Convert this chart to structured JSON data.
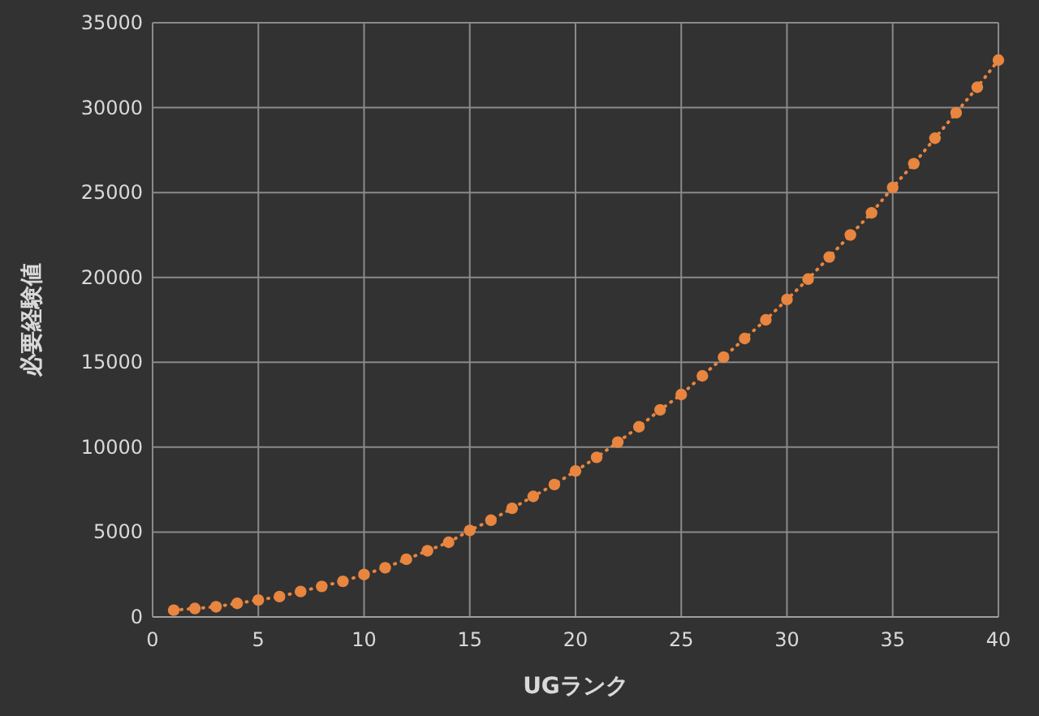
{
  "chart_data": {
    "type": "line",
    "xlabel": "UGランク",
    "ylabel": "必要経験値",
    "x": [
      1,
      2,
      3,
      4,
      5,
      6,
      7,
      8,
      9,
      10,
      11,
      12,
      13,
      14,
      15,
      16,
      17,
      18,
      19,
      20,
      21,
      22,
      23,
      24,
      25,
      26,
      27,
      28,
      29,
      30,
      31,
      32,
      33,
      34,
      35,
      36,
      37,
      38,
      39,
      40
    ],
    "series": [
      {
        "color": "#e8853f",
        "values": [
          400,
          500,
          600,
          800,
          1000,
          1200,
          1500,
          1800,
          2100,
          2500,
          2900,
          3400,
          3900,
          4400,
          5100,
          5700,
          6400,
          7100,
          7800,
          8600,
          9400,
          10300,
          11200,
          12200,
          13100,
          14200,
          15300,
          16400,
          17500,
          18700,
          19900,
          21200,
          22500,
          23800,
          25300,
          26700,
          28200,
          29700,
          31200,
          32800
        ]
      }
    ],
    "xlim": [
      0,
      40
    ],
    "xticks": [
      0,
      5,
      10,
      15,
      20,
      25,
      30,
      35,
      40
    ],
    "ylim": [
      0,
      35000
    ],
    "yticks": [
      0,
      5000,
      10000,
      15000,
      20000,
      25000,
      30000,
      35000
    ],
    "grid": true,
    "marker": "circle",
    "line_style": "dotted"
  }
}
